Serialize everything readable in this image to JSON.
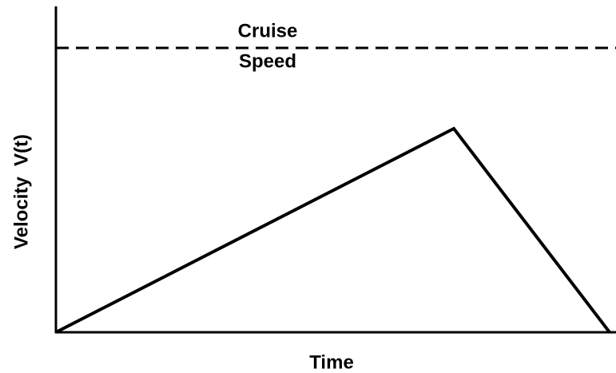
{
  "labels": {
    "cruise_line_top": "Cruise",
    "cruise_line_bottom": "Speed",
    "y_axis": "Velocity  V(t)",
    "x_axis": "Time"
  }
}
